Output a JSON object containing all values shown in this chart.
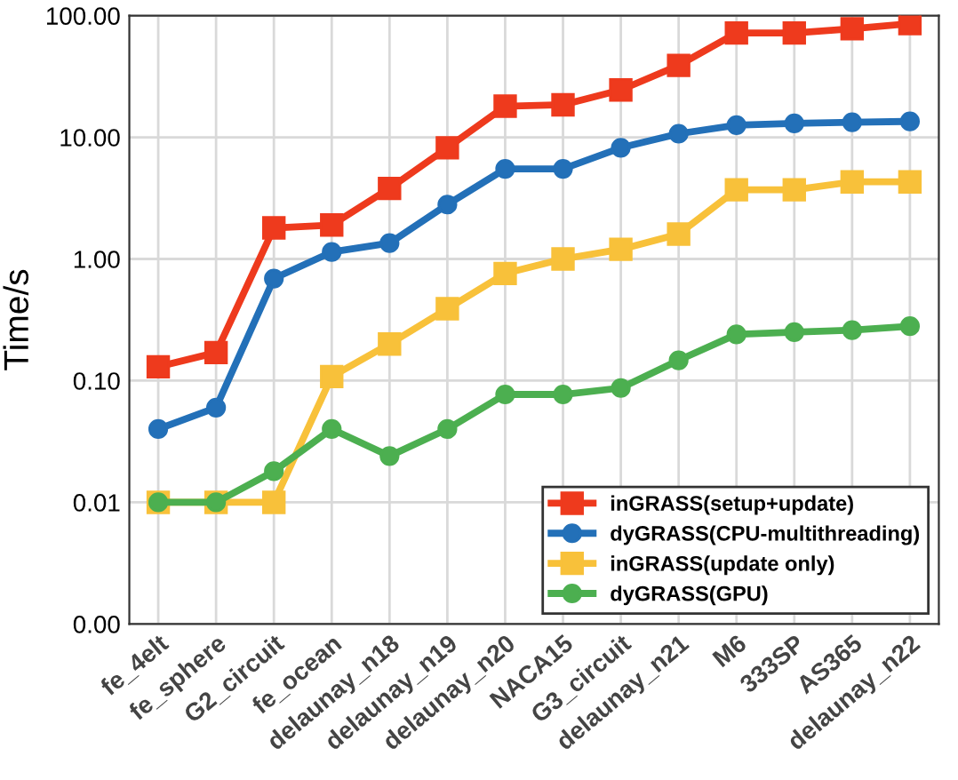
{
  "chart_data": {
    "type": "line",
    "ylabel": "Time/s",
    "log": "y",
    "categories": [
      "fe_4elt",
      "fe_sphere",
      "G2_circuit",
      "fe_ocean",
      "delaunay_n18",
      "delaunay_n19",
      "delaunay_n20",
      "NACA15",
      "G3_circuit",
      "delaunay_n21",
      "M6",
      "333SP",
      "AS365",
      "delaunay_n22"
    ],
    "ylim": [
      0.001,
      100
    ],
    "yticks": [
      {
        "value": 0.001,
        "label": "0.00"
      },
      {
        "value": 0.01,
        "label": "0.01"
      },
      {
        "value": 0.1,
        "label": "0.10"
      },
      {
        "value": 1,
        "label": "1.00"
      },
      {
        "value": 10,
        "label": "10.00"
      },
      {
        "value": 100,
        "label": "100.00"
      }
    ],
    "grid": true,
    "legend": "bottom right",
    "series": [
      {
        "name": "inGRASS(setup+update)",
        "color": "#ee3a1d",
        "marker": "square",
        "values": [
          0.13,
          0.17,
          1.8,
          1.9,
          3.8,
          8.2,
          18,
          18.5,
          24.5,
          39,
          72,
          72,
          78,
          86
        ]
      },
      {
        "name": "dyGRASS(CPU-multithreading)",
        "color": "#2370b8",
        "marker": "circle",
        "values": [
          0.04,
          0.06,
          0.69,
          1.14,
          1.35,
          2.8,
          5.5,
          5.5,
          8.2,
          10.7,
          12.6,
          13.0,
          13.3,
          13.5
        ]
      },
      {
        "name": "inGRASS(update only)",
        "color": "#f8c13a",
        "marker": "square",
        "values": [
          0.01,
          0.01,
          0.01,
          0.108,
          0.2,
          0.39,
          0.76,
          1.0,
          1.2,
          1.6,
          3.7,
          3.7,
          4.3,
          4.3
        ]
      },
      {
        "name": "dyGRASS(GPU)",
        "color": "#4caf50",
        "marker": "circle",
        "values": [
          0.01,
          0.01,
          0.018,
          0.04,
          0.024,
          0.04,
          0.077,
          0.077,
          0.087,
          0.147,
          0.24,
          0.25,
          0.26,
          0.28
        ]
      }
    ]
  }
}
